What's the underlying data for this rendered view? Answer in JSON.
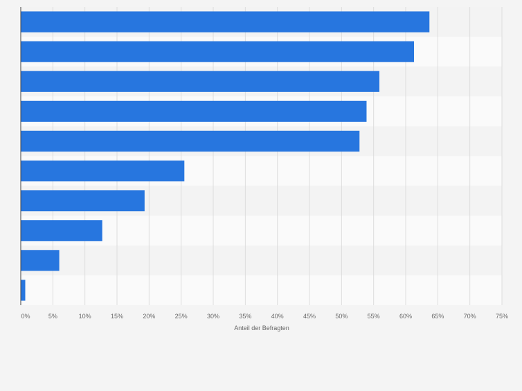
{
  "chart_data": {
    "type": "bar",
    "orientation": "horizontal",
    "categories": [
      "",
      "",
      "",
      "",
      "",
      "",
      "",
      "",
      "",
      ""
    ],
    "values": [
      63.7,
      61.3,
      55.9,
      53.9,
      52.8,
      25.5,
      19.3,
      12.7,
      6.0,
      0.7
    ],
    "xlabel": "Anteil der Befragten",
    "ylabel": "",
    "xlim": [
      0,
      75
    ],
    "xticks": [
      0,
      5,
      10,
      15,
      20,
      25,
      30,
      35,
      40,
      45,
      50,
      55,
      60,
      65,
      70,
      75
    ],
    "tick_suffix": "%",
    "grid": true,
    "legend": "none",
    "colors": {
      "bar": "#2776df",
      "band_odd": "#f3f3f3",
      "band_even": "#fafafa",
      "grid": "#dddddd",
      "axis": "#444444",
      "tick_label": "#666666",
      "background": "#f4f4f4"
    }
  }
}
